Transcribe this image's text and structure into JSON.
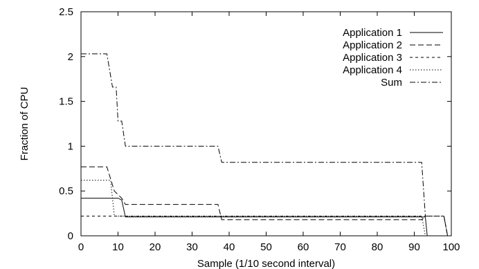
{
  "chart_data": {
    "type": "line",
    "xlabel": "Sample (1/10 second interval)",
    "ylabel": "Fraction of CPU",
    "xlim": [
      0,
      100
    ],
    "ylim": [
      0,
      2.5
    ],
    "xticks": [
      "0",
      "10",
      "20",
      "30",
      "40",
      "50",
      "60",
      "70",
      "80",
      "90",
      "100"
    ],
    "yticks": [
      "0",
      "0.5",
      "1",
      "1.5",
      "2",
      "2.5"
    ],
    "legend_position": "top-right",
    "grid": false,
    "series": [
      {
        "name": "Application 1",
        "dash": "solid",
        "points": [
          [
            0,
            0.42
          ],
          [
            10,
            0.42
          ],
          [
            11,
            0.4
          ],
          [
            12,
            0.21
          ],
          [
            93,
            0.21
          ],
          [
            93.5,
            0
          ]
        ]
      },
      {
        "name": "Application 2",
        "dash": "dashed",
        "points": [
          [
            0,
            0.77
          ],
          [
            7,
            0.77
          ],
          [
            9,
            0.5
          ],
          [
            11,
            0.42
          ],
          [
            12,
            0.35
          ],
          [
            37,
            0.35
          ],
          [
            38,
            0.18
          ],
          [
            92,
            0.18
          ],
          [
            93,
            0.22
          ],
          [
            98,
            0.22
          ],
          [
            99,
            0
          ]
        ]
      },
      {
        "name": "Application 3",
        "dash": "short-dashed",
        "points": [
          [
            0,
            0.22
          ],
          [
            92,
            0.22
          ],
          [
            93,
            0.22
          ],
          [
            98,
            0.22
          ],
          [
            99,
            0
          ]
        ]
      },
      {
        "name": "Application 4",
        "dash": "dotted",
        "points": [
          [
            0,
            0.62
          ],
          [
            8,
            0.62
          ],
          [
            9,
            0.22
          ],
          [
            92,
            0.22
          ],
          [
            93,
            0
          ]
        ]
      },
      {
        "name": "Sum",
        "dash": "dash-dot",
        "points": [
          [
            0,
            2.03
          ],
          [
            7,
            2.03
          ],
          [
            8.5,
            1.66
          ],
          [
            9.5,
            1.66
          ],
          [
            10,
            1.28
          ],
          [
            11,
            1.28
          ],
          [
            12,
            1.0
          ],
          [
            37,
            1.0
          ],
          [
            38,
            0.82
          ],
          [
            92,
            0.82
          ],
          [
            93,
            0.22
          ],
          [
            98,
            0.22
          ],
          [
            99,
            0
          ]
        ]
      }
    ]
  }
}
